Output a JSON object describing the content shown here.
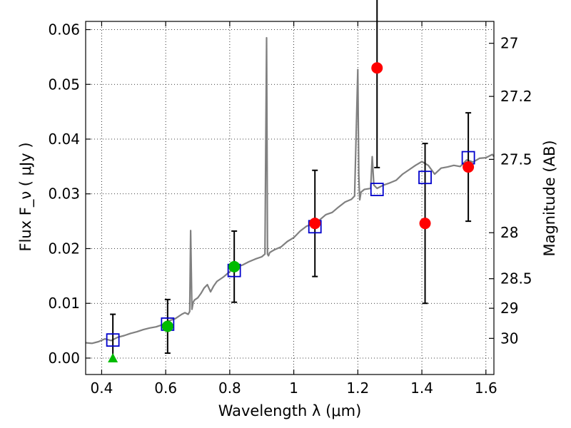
{
  "chart_data": {
    "type": "scatter",
    "title": "",
    "xlabel": "Wavelength  λ (μm)",
    "ylabel": "Flux  F_ν  ( μJy )",
    "y2label": "Magnitude (AB)",
    "xlim": [
      0.35,
      1.625
    ],
    "ylim": [
      -0.003,
      0.0615
    ],
    "grid": true,
    "x_ticks": [
      0.4,
      0.6,
      0.8,
      1.0,
      1.2,
      1.4,
      1.6
    ],
    "x_tick_labels": [
      "0.4",
      "0.6",
      "0.8",
      "1",
      "1.2",
      "1.4",
      "1.6"
    ],
    "y_ticks": [
      0.0,
      0.01,
      0.02,
      0.03,
      0.04,
      0.05,
      0.06
    ],
    "y_tick_labels": [
      "0.00",
      "0.01",
      "0.02",
      "0.03",
      "0.04",
      "0.05",
      "0.06"
    ],
    "y2_ticks": [
      {
        "label": "27",
        "flux": 0.0575
      },
      {
        "label": "27.2",
        "flux": 0.0478
      },
      {
        "label": "27.5",
        "flux": 0.0363
      },
      {
        "label": "28",
        "flux": 0.0229
      },
      {
        "label": "28.5",
        "flux": 0.0145
      },
      {
        "label": "29",
        "flux": 0.0091
      },
      {
        "label": "30",
        "flux": 0.0036
      }
    ],
    "series": [
      {
        "kind": "spectrum",
        "color": "#808080",
        "x": [
          0.35,
          0.37,
          0.39,
          0.41,
          0.43,
          0.45,
          0.47,
          0.49,
          0.51,
          0.53,
          0.55,
          0.57,
          0.59,
          0.61,
          0.63,
          0.65,
          0.66,
          0.67,
          0.675,
          0.678,
          0.682,
          0.686,
          0.69,
          0.7,
          0.71,
          0.72,
          0.73,
          0.74,
          0.75,
          0.76,
          0.78,
          0.8,
          0.82,
          0.84,
          0.86,
          0.88,
          0.9,
          0.91,
          0.915,
          0.918,
          0.921,
          0.925,
          0.94,
          0.96,
          0.98,
          1.0,
          1.02,
          1.04,
          1.06,
          1.08,
          1.1,
          1.12,
          1.14,
          1.16,
          1.18,
          1.19,
          1.2,
          1.203,
          1.206,
          1.21,
          1.22,
          1.24,
          1.245,
          1.25,
          1.26,
          1.28,
          1.3,
          1.32,
          1.34,
          1.36,
          1.38,
          1.4,
          1.42,
          1.44,
          1.46,
          1.48,
          1.5,
          1.52,
          1.54,
          1.56,
          1.58,
          1.6,
          1.62,
          1.625
        ],
        "y": [
          0.0028,
          0.0027,
          0.003,
          0.0035,
          0.0032,
          0.0038,
          0.0041,
          0.0045,
          0.0048,
          0.0052,
          0.0055,
          0.0057,
          0.0061,
          0.0068,
          0.0072,
          0.008,
          0.0083,
          0.008,
          0.0085,
          0.0233,
          0.0089,
          0.0102,
          0.0106,
          0.011,
          0.0118,
          0.0128,
          0.0134,
          0.0121,
          0.0132,
          0.014,
          0.0148,
          0.0158,
          0.0166,
          0.017,
          0.0176,
          0.0181,
          0.0185,
          0.019,
          0.0585,
          0.019,
          0.0187,
          0.0193,
          0.0198,
          0.0203,
          0.0213,
          0.022,
          0.0232,
          0.0241,
          0.0245,
          0.0252,
          0.0262,
          0.0266,
          0.0276,
          0.0285,
          0.029,
          0.0296,
          0.0527,
          0.0333,
          0.0289,
          0.0303,
          0.0308,
          0.031,
          0.0368,
          0.0316,
          0.031,
          0.0316,
          0.032,
          0.0325,
          0.0336,
          0.0344,
          0.0352,
          0.0359,
          0.0352,
          0.0336,
          0.0347,
          0.0349,
          0.0352,
          0.035,
          0.0362,
          0.0358,
          0.0365,
          0.0366,
          0.0372,
          0.0368
        ]
      },
      {
        "kind": "model-photometry",
        "marker": "open-square",
        "color": "#0000cc",
        "x": [
          0.435,
          0.606,
          0.814,
          1.066,
          1.26,
          1.41,
          1.545
        ],
        "y": [
          0.0033,
          0.0062,
          0.016,
          0.024,
          0.0308,
          0.033,
          0.0366
        ]
      },
      {
        "kind": "observed-red",
        "marker": "filled-circle",
        "color": "#ff0000",
        "x": [
          1.066,
          1.26,
          1.41,
          1.545
        ],
        "y": [
          0.0246,
          0.053,
          0.0246,
          0.0349
        ],
        "yerr": [
          0.0097,
          0.0182,
          0.0146,
          0.0099
        ]
      },
      {
        "kind": "observed-green",
        "marker": "filled-circle",
        "color": "#00bb00",
        "x": [
          0.606,
          0.814
        ],
        "y": [
          0.0058,
          0.0167
        ],
        "yerr": [
          0.0049,
          0.0065
        ]
      },
      {
        "kind": "upper-limit",
        "marker": "filled-triangle",
        "color": "#00bb00",
        "x": [
          0.435
        ],
        "y": [
          0.0
        ],
        "ytop": [
          0.008
        ]
      }
    ]
  }
}
